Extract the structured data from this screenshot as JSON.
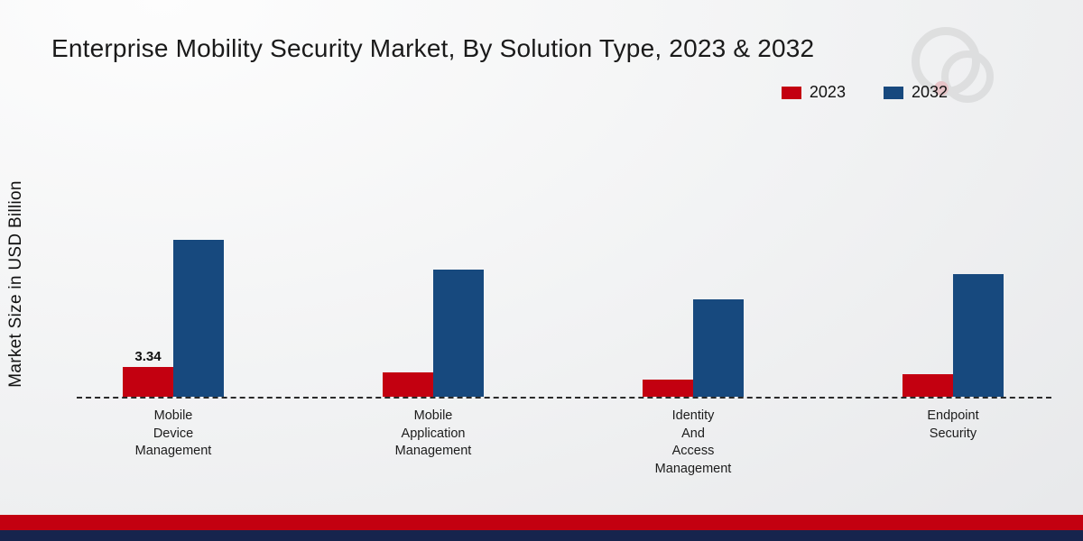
{
  "title": "Enterprise Mobility Security Market, By Solution Type, 2023 & 2032",
  "y_axis_label": "Market Size in USD Billion",
  "colors": {
    "series_2023": "#c30010",
    "series_2032": "#17497e",
    "footer_red_band": "#c30010",
    "footer_navy_band": "#16244d",
    "title_text": "#1a1a1a",
    "baseline": "#2a2a2a"
  },
  "legend": {
    "position": "top-right",
    "items": [
      {
        "label": "2023",
        "color": "#c30010"
      },
      {
        "label": "2032",
        "color": "#17497e"
      }
    ]
  },
  "chart_data": {
    "type": "bar",
    "title": "Enterprise Mobility Security Market, By Solution Type, 2023 & 2032",
    "xlabel": "",
    "ylabel": "Market Size in USD Billion",
    "ylim": [
      0,
      18
    ],
    "grid": false,
    "legend_position": "top-right",
    "categories": [
      "Mobile Device Management",
      "Mobile Application Management",
      "Identity And Access Management",
      "Endpoint Security"
    ],
    "category_lines": [
      [
        "Mobile",
        "Device",
        "Management"
      ],
      [
        "Mobile",
        "Application",
        "Management"
      ],
      [
        "Identity",
        "And",
        "Access",
        "Management"
      ],
      [
        "Endpoint",
        "Security"
      ]
    ],
    "series": [
      {
        "name": "2023",
        "color": "#c30010",
        "values": [
          3.34,
          2.7,
          1.9,
          2.5
        ]
      },
      {
        "name": "2032",
        "color": "#17497e",
        "values": [
          17.4,
          14.1,
          10.8,
          13.6
        ]
      }
    ],
    "data_labels": [
      [
        "3.34",
        "",
        "",
        ""
      ],
      [
        "",
        "",
        "",
        ""
      ]
    ]
  }
}
